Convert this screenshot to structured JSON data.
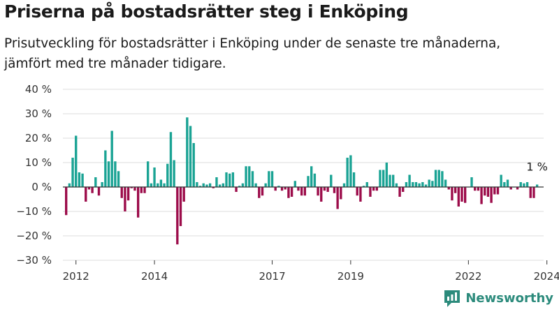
{
  "title": "Priserna på bostadsrätter steg i Enköping",
  "subtitle": "Prisutveckling för bostadsrätter i Enköping under de senaste tre månaderna, jämfört med tre månader tidigare.",
  "brand": "Newsworthy",
  "colors": {
    "positive": "#1aa394",
    "negative": "#9c0c4a",
    "grid": "#dddddd",
    "axis": "#333333",
    "brand": "#2c8b7c"
  },
  "chart_data": {
    "type": "bar",
    "start": "2011-10",
    "ylim": [
      -30,
      40
    ],
    "y_ticks": [
      -30,
      -20,
      -10,
      0,
      10,
      20,
      30,
      40
    ],
    "y_tick_labels": [
      "−30 %",
      "−20 %",
      "−10 %",
      "0 %",
      "10 %",
      "20 %",
      "30 %",
      "40 %"
    ],
    "x_ticks": [
      {
        "date": "2012-01",
        "label": "2012"
      },
      {
        "date": "2014-01",
        "label": "2014"
      },
      {
        "date": "2017-01",
        "label": "2017"
      },
      {
        "date": "2019-01",
        "label": "2019"
      },
      {
        "date": "2022-01",
        "label": "2022"
      },
      {
        "date": "2024-01",
        "label": "2024"
      }
    ],
    "last_label": "1 %",
    "values": [
      -11.5,
      1.5,
      12,
      21,
      6,
      5.5,
      -6,
      -1,
      -2.5,
      4,
      -3.5,
      2,
      15,
      10.5,
      23,
      10.5,
      6.5,
      -4.5,
      -10,
      -5.5,
      -0.5,
      -1.5,
      -12.5,
      -2.5,
      -2.5,
      10.5,
      1.5,
      8,
      1.5,
      3,
      1.5,
      9.5,
      22.5,
      11,
      -23.5,
      -16,
      -6,
      28.5,
      25,
      18,
      2,
      0.5,
      1.5,
      1,
      1.5,
      -0.5,
      4,
      1,
      1.5,
      6,
      5.5,
      6,
      -2,
      0.5,
      1.5,
      8.5,
      8.5,
      6.5,
      1.5,
      -4.5,
      -3.5,
      1.5,
      6.5,
      6.5,
      -1.5,
      0.5,
      -1.5,
      -1,
      -4.5,
      -4,
      2.5,
      -1.5,
      -3.5,
      -3.5,
      4.5,
      8.5,
      5.5,
      -3.5,
      -6,
      -1.5,
      -2,
      5,
      -2.5,
      -9,
      -5,
      1.5,
      12,
      13,
      6,
      -3.5,
      -6,
      0.5,
      2,
      -4,
      -1.5,
      -1.5,
      7,
      7,
      10,
      5,
      5,
      1.5,
      -4,
      -2,
      2,
      5,
      2,
      2,
      1.5,
      2,
      1,
      3,
      2.5,
      7,
      7,
      6.5,
      3,
      -1,
      -5.5,
      -2.5,
      -8,
      -6,
      -6.5,
      0,
      4,
      -1.5,
      -1.5,
      -7,
      -3.5,
      -4,
      -6.5,
      -3,
      -3,
      5,
      2,
      3,
      -1,
      0,
      -1,
      2,
      1.5,
      2,
      -4.5,
      -4.5,
      1
    ]
  }
}
